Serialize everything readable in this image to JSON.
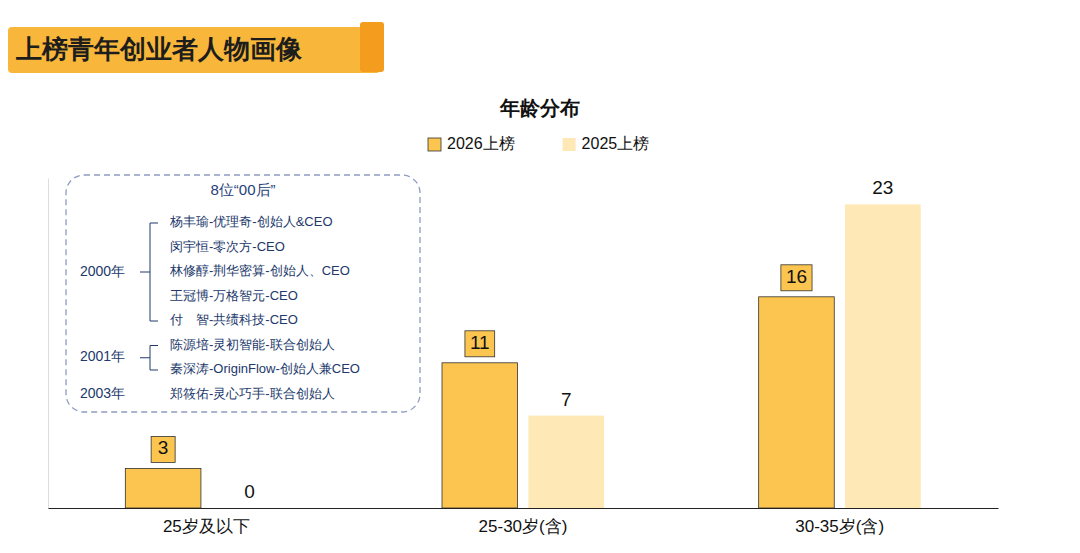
{
  "header": {
    "title": "上榜青年创业者人物画像"
  },
  "chart_data": {
    "type": "bar",
    "title": "年龄分布",
    "categories": [
      "25岁及以下",
      "25-30岁(含)",
      "30-35岁(含)"
    ],
    "series": [
      {
        "name": "2026上榜",
        "color": "#FBC54F",
        "values": [
          3,
          11,
          16
        ]
      },
      {
        "name": "2025上榜",
        "color": "#FDE8B6",
        "values": [
          0,
          7,
          23
        ]
      }
    ],
    "ylim": [
      0,
      25
    ],
    "legend": "top",
    "data_labels": true,
    "tick_labels": "x",
    "annotations": [
      {
        "title": "8位“00后”",
        "groups": [
          {
            "year": "2000年",
            "items": [
              "杨丰瑜-优理奇-创始人&CEO",
              "闵宇恒-零次方-CEO",
              "林修醇-荆华密算-创始人、CEO",
              "王冠博-万格智元-CEO",
              "付　智-共绩科技-CEO"
            ]
          },
          {
            "year": "2001年",
            "items": [
              "陈源培-灵初智能-联合创始人",
              "秦深涛-OriginFlow-创始人兼CEO"
            ]
          },
          {
            "year": "2003年",
            "items": [
              "郑筱佑-灵心巧手-联合创始人"
            ]
          }
        ]
      }
    ]
  }
}
